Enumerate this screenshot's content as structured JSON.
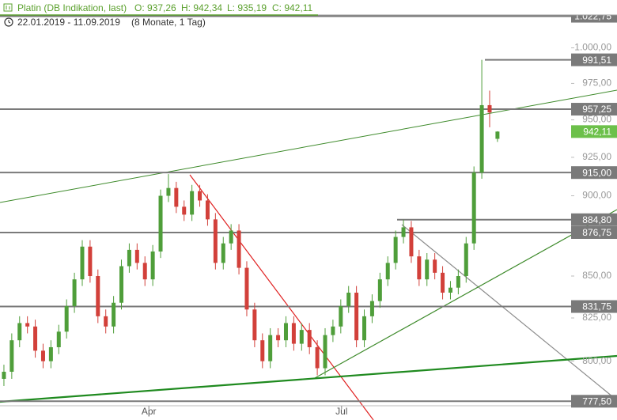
{
  "chart_data": {
    "type": "candlestick",
    "title": "Platin (DB Indikation, last)",
    "info": [
      "O: 937,26",
      "H: 942,34",
      "L: 935,19",
      "C: 942,11"
    ],
    "subtitle": "22.01.2019 - 11.09.2019",
    "period": "(8 Monate, 1 Tag)",
    "log_scale": true,
    "ylim": [
      775,
      1030
    ],
    "yticks": [
      {
        "value": 800,
        "label": "800,00"
      },
      {
        "value": 825,
        "label": "825,00"
      },
      {
        "value": 850,
        "label": "850,00"
      },
      {
        "value": 900,
        "label": "900,00"
      },
      {
        "value": 925,
        "label": "925,00"
      },
      {
        "value": 950,
        "label": "950,00"
      },
      {
        "value": 975,
        "label": "975,00"
      },
      {
        "value": 1000,
        "label": "1.000,00"
      }
    ],
    "xlim": [
      -0.5,
      72.2
    ],
    "xticks": [
      {
        "value": 18.5,
        "label": "Apr"
      },
      {
        "value": 43.1,
        "label": "Jul"
      }
    ],
    "up_color": "#4f9e3a",
    "down_color": "#d2403a",
    "open": [
      790,
      794,
      812,
      822,
      820,
      806,
      800,
      808,
      817,
      832,
      848,
      868,
      850,
      826,
      820,
      834,
      856,
      866,
      858,
      848,
      865,
      900,
      905,
      893,
      888,
      903,
      897,
      885,
      858,
      870,
      878,
      855,
      830,
      812,
      800,
      815,
      812,
      822,
      810,
      818,
      808,
      796,
      815,
      820,
      832,
      840,
      812,
      826,
      835,
      848,
      858,
      874,
      880,
      862,
      848,
      860,
      852,
      840,
      843,
      850,
      870,
      915,
      960,
      937.26
    ],
    "high": [
      798,
      816,
      826,
      826,
      824,
      810,
      812,
      821,
      836,
      852,
      872,
      872,
      854,
      830,
      838,
      860,
      870,
      870,
      862,
      869,
      904,
      914,
      909,
      897,
      907,
      907,
      901,
      889,
      874,
      882,
      882,
      859,
      834,
      816,
      819,
      819,
      826,
      826,
      822,
      822,
      812,
      819,
      824,
      836,
      844,
      844,
      830,
      839,
      852,
      862,
      878,
      884.8,
      884,
      866,
      864,
      864,
      856,
      847,
      854,
      874,
      919,
      991.51,
      970,
      942.34
    ],
    "low": [
      786,
      790,
      808,
      816,
      802,
      796,
      796,
      804,
      813,
      828,
      844,
      846,
      822,
      816,
      816,
      830,
      852,
      854,
      844,
      844,
      861,
      896,
      889,
      884,
      884,
      893,
      881,
      854,
      854,
      866,
      851,
      826,
      808,
      796,
      796,
      808,
      808,
      806,
      806,
      804,
      792,
      792,
      811,
      816,
      828,
      808,
      808,
      822,
      831,
      844,
      854,
      870,
      858,
      844,
      844,
      848,
      836,
      836,
      839,
      846,
      866,
      911,
      945,
      935.19
    ],
    "close": [
      794,
      812,
      822,
      820,
      806,
      800,
      808,
      817,
      832,
      848,
      868,
      850,
      826,
      820,
      834,
      856,
      866,
      858,
      848,
      865,
      900,
      905,
      893,
      888,
      903,
      897,
      885,
      858,
      870,
      878,
      855,
      830,
      812,
      800,
      815,
      812,
      822,
      810,
      818,
      808,
      796,
      815,
      820,
      832,
      840,
      812,
      826,
      835,
      848,
      858,
      874,
      880,
      862,
      848,
      860,
      852,
      840,
      843,
      850,
      870,
      915,
      960,
      955,
      942.11
    ],
    "levels": [
      {
        "value": 1022.75,
        "label": "1.022,75",
        "color": "#7a7a7a"
      },
      {
        "value": 991.51,
        "label": "991,51",
        "color": "#7a7a7a"
      },
      {
        "value": 957.25,
        "label": "957,25",
        "color": "#7a7a7a"
      },
      {
        "value": 942.11,
        "label": "942,11",
        "color": "#6cc04a"
      },
      {
        "value": 915,
        "label": "915,00",
        "color": "#7a7a7a"
      },
      {
        "value": 884.8,
        "label": "884,80",
        "color": "#7a7a7a"
      },
      {
        "value": 876.75,
        "label": "876,75",
        "color": "#7a7a7a"
      },
      {
        "value": 831.75,
        "label": "831,75",
        "color": "#7a7a7a"
      },
      {
        "value": 777.5,
        "label": "777,50",
        "color": "#7a7a7a"
      }
    ]
  }
}
